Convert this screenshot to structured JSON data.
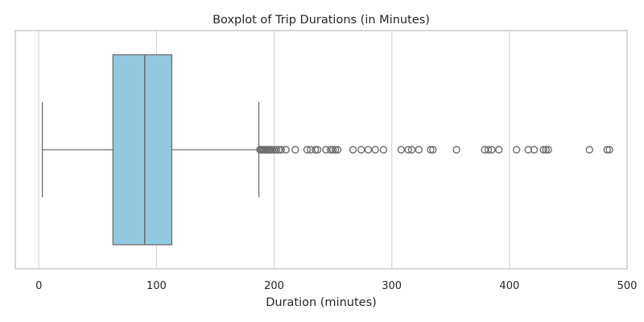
{
  "chart_data": {
    "type": "box",
    "orientation": "horizontal",
    "title": "Boxplot of Trip Durations (in Minutes)",
    "xlabel": "Duration (minutes)",
    "ylabel": "",
    "xlim": [
      -20,
      500
    ],
    "xticks": [
      0,
      100,
      200,
      300,
      400,
      500
    ],
    "xtick_labels": [
      "0",
      "100",
      "200",
      "300",
      "400",
      "500"
    ],
    "grid": "vertical",
    "box": {
      "whisker_low": 3,
      "q1": 63,
      "median": 90,
      "q3": 113,
      "whisker_high": 187
    },
    "outliers": [
      188,
      189,
      190,
      191,
      192,
      193,
      194,
      195,
      196,
      197,
      198,
      200,
      202,
      204,
      206,
      210,
      218,
      228,
      231,
      235,
      237,
      244,
      248,
      250,
      252,
      254,
      267,
      274,
      280,
      286,
      293,
      308,
      314,
      317,
      323,
      333,
      335,
      355,
      379,
      382,
      385,
      391,
      406,
      416,
      421,
      429,
      431,
      433,
      468,
      483,
      485
    ],
    "colors": {
      "box_fill": "#92c9e0",
      "box_edge": "#6e6e6e",
      "grid": "#d9d9d9",
      "spine": "#cccccc",
      "outlier": "#6e6e6e"
    }
  }
}
